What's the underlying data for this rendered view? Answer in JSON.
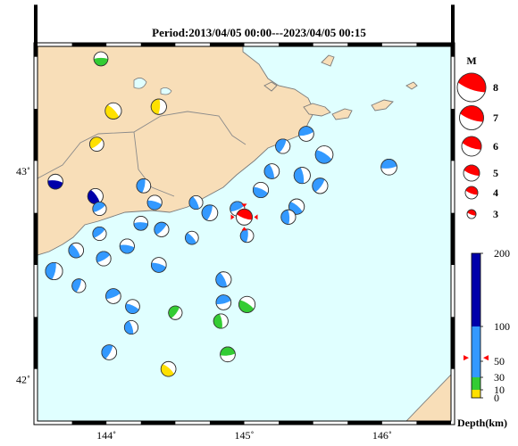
{
  "title": "Period:2013/04/05 00:00---2023/04/05 00:15",
  "map": {
    "lon_range": [
      143.5,
      146.5
    ],
    "lat_range": [
      41.8,
      43.6
    ],
    "x_ticks": [
      {
        "value": 144,
        "label": "144˚"
      },
      {
        "value": 145,
        "label": "145˚"
      },
      {
        "value": 146,
        "label": "146˚"
      }
    ],
    "y_ticks": [
      {
        "value": 43,
        "label": "43˚"
      },
      {
        "value": 42,
        "label": "42˚"
      }
    ],
    "colors": {
      "sea": "#e0ffff",
      "land": "#f8deb8",
      "coast": "#7a7a7a",
      "mechanism": "#1e90ff"
    }
  },
  "magnitude_legend": {
    "title": "M",
    "entries": [
      {
        "label": "8",
        "value": 8
      },
      {
        "label": "7",
        "value": 7
      },
      {
        "label": "6",
        "value": 6
      },
      {
        "label": "5",
        "value": 5
      },
      {
        "label": "4",
        "value": 4
      },
      {
        "label": "3",
        "value": 3
      }
    ],
    "color": "#ff0000"
  },
  "depth_scale": {
    "title": "Depth(km)",
    "ticks": [
      "200",
      "100",
      "50",
      "30",
      "10",
      "0"
    ],
    "bands": [
      {
        "from": 0,
        "to": 10,
        "color": "#ffe000"
      },
      {
        "from": 10,
        "to": 30,
        "color": "#33cc33"
      },
      {
        "from": 30,
        "to": 100,
        "color": "#3399ff"
      },
      {
        "from": 100,
        "to": 200,
        "color": "#0000aa"
      }
    ],
    "marker_depth": 55
  },
  "main_event": {
    "lon": 145.0,
    "lat": 42.78,
    "mag": 5,
    "color": "#ff0000"
  },
  "events": [
    {
      "lon": 143.96,
      "lat": 43.54,
      "mag": 3.5,
      "color": "#33cc33"
    },
    {
      "lon": 144.05,
      "lat": 43.29,
      "mag": 4,
      "color": "#ffe000"
    },
    {
      "lon": 144.38,
      "lat": 43.31,
      "mag": 3.8,
      "color": "#ffe000"
    },
    {
      "lon": 143.93,
      "lat": 43.13,
      "mag": 3.5,
      "color": "#ffe000"
    },
    {
      "lon": 143.63,
      "lat": 42.95,
      "mag": 3.7,
      "color": "#0000aa"
    },
    {
      "lon": 143.92,
      "lat": 42.88,
      "mag": 3.8,
      "color": "#0000aa"
    },
    {
      "lon": 144.27,
      "lat": 42.93,
      "mag": 3.5,
      "color": "#3399ff"
    },
    {
      "lon": 143.95,
      "lat": 42.82,
      "mag": 3.4,
      "color": "#3399ff"
    },
    {
      "lon": 144.35,
      "lat": 42.85,
      "mag": 3.6,
      "color": "#3399ff"
    },
    {
      "lon": 144.65,
      "lat": 42.85,
      "mag": 3.4,
      "color": "#3399ff"
    },
    {
      "lon": 144.75,
      "lat": 42.8,
      "mag": 3.9,
      "color": "#3399ff"
    },
    {
      "lon": 144.95,
      "lat": 42.82,
      "mag": 3.6,
      "color": "#3399ff"
    },
    {
      "lon": 145.12,
      "lat": 42.91,
      "mag": 3.8,
      "color": "#3399ff"
    },
    {
      "lon": 145.2,
      "lat": 43.0,
      "mag": 3.7,
      "color": "#3399ff"
    },
    {
      "lon": 145.28,
      "lat": 43.12,
      "mag": 3.6,
      "color": "#3399ff"
    },
    {
      "lon": 145.45,
      "lat": 43.18,
      "mag": 3.7,
      "color": "#3399ff"
    },
    {
      "lon": 145.58,
      "lat": 43.08,
      "mag": 4.3,
      "color": "#3399ff"
    },
    {
      "lon": 145.42,
      "lat": 42.98,
      "mag": 4.0,
      "color": "#3399ff"
    },
    {
      "lon": 145.55,
      "lat": 42.93,
      "mag": 3.8,
      "color": "#3399ff"
    },
    {
      "lon": 146.05,
      "lat": 43.02,
      "mag": 3.9,
      "color": "#3399ff"
    },
    {
      "lon": 145.38,
      "lat": 42.83,
      "mag": 3.8,
      "color": "#3399ff"
    },
    {
      "lon": 145.32,
      "lat": 42.78,
      "mag": 3.6,
      "color": "#3399ff"
    },
    {
      "lon": 144.4,
      "lat": 42.72,
      "mag": 3.6,
      "color": "#3399ff"
    },
    {
      "lon": 144.25,
      "lat": 42.75,
      "mag": 3.5,
      "color": "#3399ff"
    },
    {
      "lon": 144.62,
      "lat": 42.68,
      "mag": 3.3,
      "color": "#3399ff"
    },
    {
      "lon": 145.02,
      "lat": 42.69,
      "mag": 3.3,
      "color": "#3399ff"
    },
    {
      "lon": 143.95,
      "lat": 42.7,
      "mag": 3.4,
      "color": "#3399ff"
    },
    {
      "lon": 144.15,
      "lat": 42.64,
      "mag": 3.6,
      "color": "#3399ff"
    },
    {
      "lon": 143.78,
      "lat": 42.62,
      "mag": 3.7,
      "color": "#3399ff"
    },
    {
      "lon": 143.62,
      "lat": 42.52,
      "mag": 4.2,
      "color": "#3399ff"
    },
    {
      "lon": 143.98,
      "lat": 42.58,
      "mag": 3.6,
      "color": "#3399ff"
    },
    {
      "lon": 144.38,
      "lat": 42.55,
      "mag": 3.7,
      "color": "#3399ff"
    },
    {
      "lon": 144.85,
      "lat": 42.48,
      "mag": 3.8,
      "color": "#3399ff"
    },
    {
      "lon": 143.8,
      "lat": 42.45,
      "mag": 3.4,
      "color": "#3399ff"
    },
    {
      "lon": 144.05,
      "lat": 42.4,
      "mag": 3.7,
      "color": "#3399ff"
    },
    {
      "lon": 144.19,
      "lat": 42.35,
      "mag": 3.5,
      "color": "#3399ff"
    },
    {
      "lon": 144.18,
      "lat": 42.25,
      "mag": 3.4,
      "color": "#3399ff"
    },
    {
      "lon": 144.02,
      "lat": 42.13,
      "mag": 3.7,
      "color": "#3399ff"
    },
    {
      "lon": 144.85,
      "lat": 42.37,
      "mag": 3.7,
      "color": "#3399ff"
    },
    {
      "lon": 145.02,
      "lat": 42.36,
      "mag": 4.0,
      "color": "#33cc33"
    },
    {
      "lon": 144.83,
      "lat": 42.28,
      "mag": 3.6,
      "color": "#33cc33"
    },
    {
      "lon": 144.5,
      "lat": 42.32,
      "mag": 3.4,
      "color": "#33cc33"
    },
    {
      "lon": 144.88,
      "lat": 42.12,
      "mag": 3.7,
      "color": "#33cc33"
    },
    {
      "lon": 144.45,
      "lat": 42.05,
      "mag": 3.7,
      "color": "#ffe000"
    }
  ]
}
